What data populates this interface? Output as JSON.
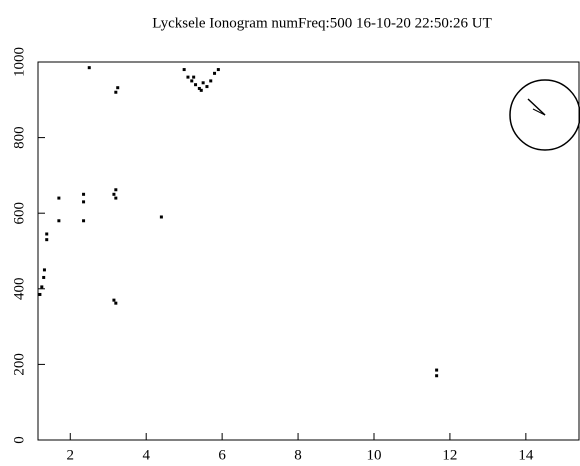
{
  "chart_data": {
    "type": "scatter",
    "title": "Lycksele Ionogram   numFreq:500   16-10-20 22:50:26 UT",
    "xlim": [
      1.15,
      15.4
    ],
    "ylim": [
      0,
      1000
    ],
    "xticks": [
      2,
      4,
      6,
      8,
      10,
      12,
      14
    ],
    "yticks": [
      0,
      200,
      400,
      600,
      800,
      1000
    ],
    "color": "#000000",
    "x": [
      1.2,
      1.25,
      1.3,
      1.32,
      1.38,
      1.38,
      1.7,
      1.7,
      2.35,
      2.35,
      2.35,
      2.5,
      3.15,
      3.2,
      3.2,
      3.15,
      3.2,
      3.2,
      3.25,
      4.4,
      5.0,
      5.1,
      5.2,
      5.3,
      5.4,
      5.5,
      5.6,
      5.7,
      5.8,
      5.9,
      5.25,
      5.45,
      11.65,
      11.65
    ],
    "values": [
      385,
      405,
      430,
      450,
      530,
      545,
      580,
      640,
      580,
      630,
      650,
      985,
      650,
      662,
      640,
      370,
      362,
      920,
      932,
      590,
      980,
      960,
      950,
      940,
      930,
      945,
      935,
      950,
      970,
      980,
      960,
      925,
      170,
      185
    ]
  }
}
